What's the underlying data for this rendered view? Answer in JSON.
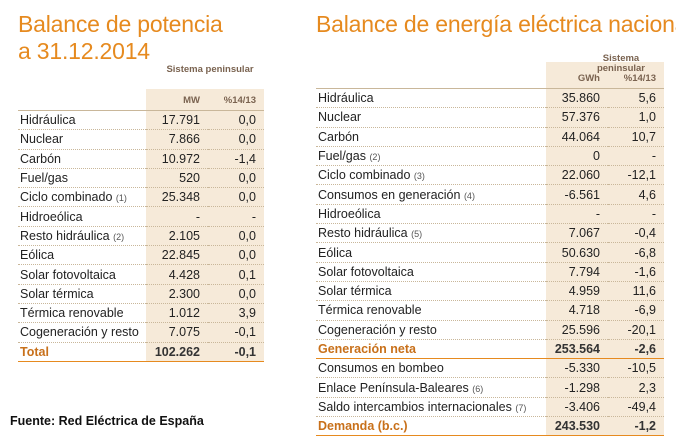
{
  "left": {
    "title_line1": "Balance de potencia",
    "title_line2": "a 31.12.2014",
    "header_system": "Sistema peninsular",
    "col_unit": "MW",
    "col_pct": "%14/13",
    "rows": [
      {
        "name": "Hidráulica",
        "note": "",
        "v1": "17.791",
        "v2": "0,0"
      },
      {
        "name": "Nuclear",
        "note": "",
        "v1": "7.866",
        "v2": "0,0"
      },
      {
        "name": "Carbón",
        "note": "",
        "v1": "10.972",
        "v2": "-1,4"
      },
      {
        "name": "Fuel/gas",
        "note": "",
        "v1": "520",
        "v2": "0,0"
      },
      {
        "name": "Ciclo combinado",
        "note": "(1)",
        "v1": "25.348",
        "v2": "0,0"
      },
      {
        "name": "Hidroeólica",
        "note": "",
        "v1": "-",
        "v2": "-"
      },
      {
        "name": "Resto hidráulica",
        "note": "(2)",
        "v1": "2.105",
        "v2": "0,0"
      },
      {
        "name": "Eólica",
        "note": "",
        "v1": "22.845",
        "v2": "0,0"
      },
      {
        "name": "Solar fotovoltaica",
        "note": "",
        "v1": "4.428",
        "v2": "0,1"
      },
      {
        "name": "Solar térmica",
        "note": "",
        "v1": "2.300",
        "v2": "0,0"
      },
      {
        "name": "Térmica renovable",
        "note": "",
        "v1": "1.012",
        "v2": "3,9"
      },
      {
        "name": "Cogeneración y resto",
        "note": "",
        "v1": "7.075",
        "v2": "-0,1"
      }
    ],
    "total": {
      "name": "Total",
      "v1": "102.262",
      "v2": "-0,1"
    }
  },
  "right": {
    "title": "Balance de energía eléctrica nacional",
    "header_system": "Sistema peninsular",
    "col_unit": "GWh",
    "col_pct": "%14/13",
    "rows": [
      {
        "name": "Hidráulica",
        "note": "",
        "v1": "35.860",
        "v2": "5,6"
      },
      {
        "name": "Nuclear",
        "note": "",
        "v1": "57.376",
        "v2": "1,0"
      },
      {
        "name": "Carbón",
        "note": "",
        "v1": "44.064",
        "v2": "10,7"
      },
      {
        "name": "Fuel/gas",
        "note": "(2)",
        "v1": "0",
        "v2": "-"
      },
      {
        "name": "Ciclo combinado",
        "note": "(3)",
        "v1": "22.060",
        "v2": "-12,1"
      },
      {
        "name": "Consumos en generación",
        "note": "(4)",
        "v1": "-6.561",
        "v2": "4,6"
      },
      {
        "name": "Hidroeólica",
        "note": "",
        "v1": "-",
        "v2": "-"
      },
      {
        "name": "Resto hidráulica",
        "note": "(5)",
        "v1": "7.067",
        "v2": "-0,4"
      },
      {
        "name": "Eólica",
        "note": "",
        "v1": "50.630",
        "v2": "-6,8"
      },
      {
        "name": "Solar fotovoltaica",
        "note": "",
        "v1": "7.794",
        "v2": "-1,6"
      },
      {
        "name": "Solar térmica",
        "note": "",
        "v1": "4.959",
        "v2": "11,6"
      },
      {
        "name": "Térmica renovable",
        "note": "",
        "v1": "4.718",
        "v2": "-6,9"
      },
      {
        "name": "Cogeneración y resto",
        "note": "",
        "v1": "25.596",
        "v2": "-20,1"
      },
      {
        "name": "Generación neta",
        "note": "",
        "v1": "253.564",
        "v2": "-2,6",
        "bold": true
      },
      {
        "name": "Consumos en bombeo",
        "note": "",
        "v1": "-5.330",
        "v2": "-10,5"
      },
      {
        "name": "Enlace Península-Baleares",
        "note": "(6)",
        "v1": "-1.298",
        "v2": "2,3"
      },
      {
        "name": "Saldo intercambios internacionales",
        "note": "(7)",
        "v1": "-3.406",
        "v2": "-49,4"
      }
    ],
    "total": {
      "name": "Demanda (b.c.)",
      "v1": "243.530",
      "v2": "-1,2"
    }
  },
  "source": "Fuente: Red Eléctrica de España"
}
